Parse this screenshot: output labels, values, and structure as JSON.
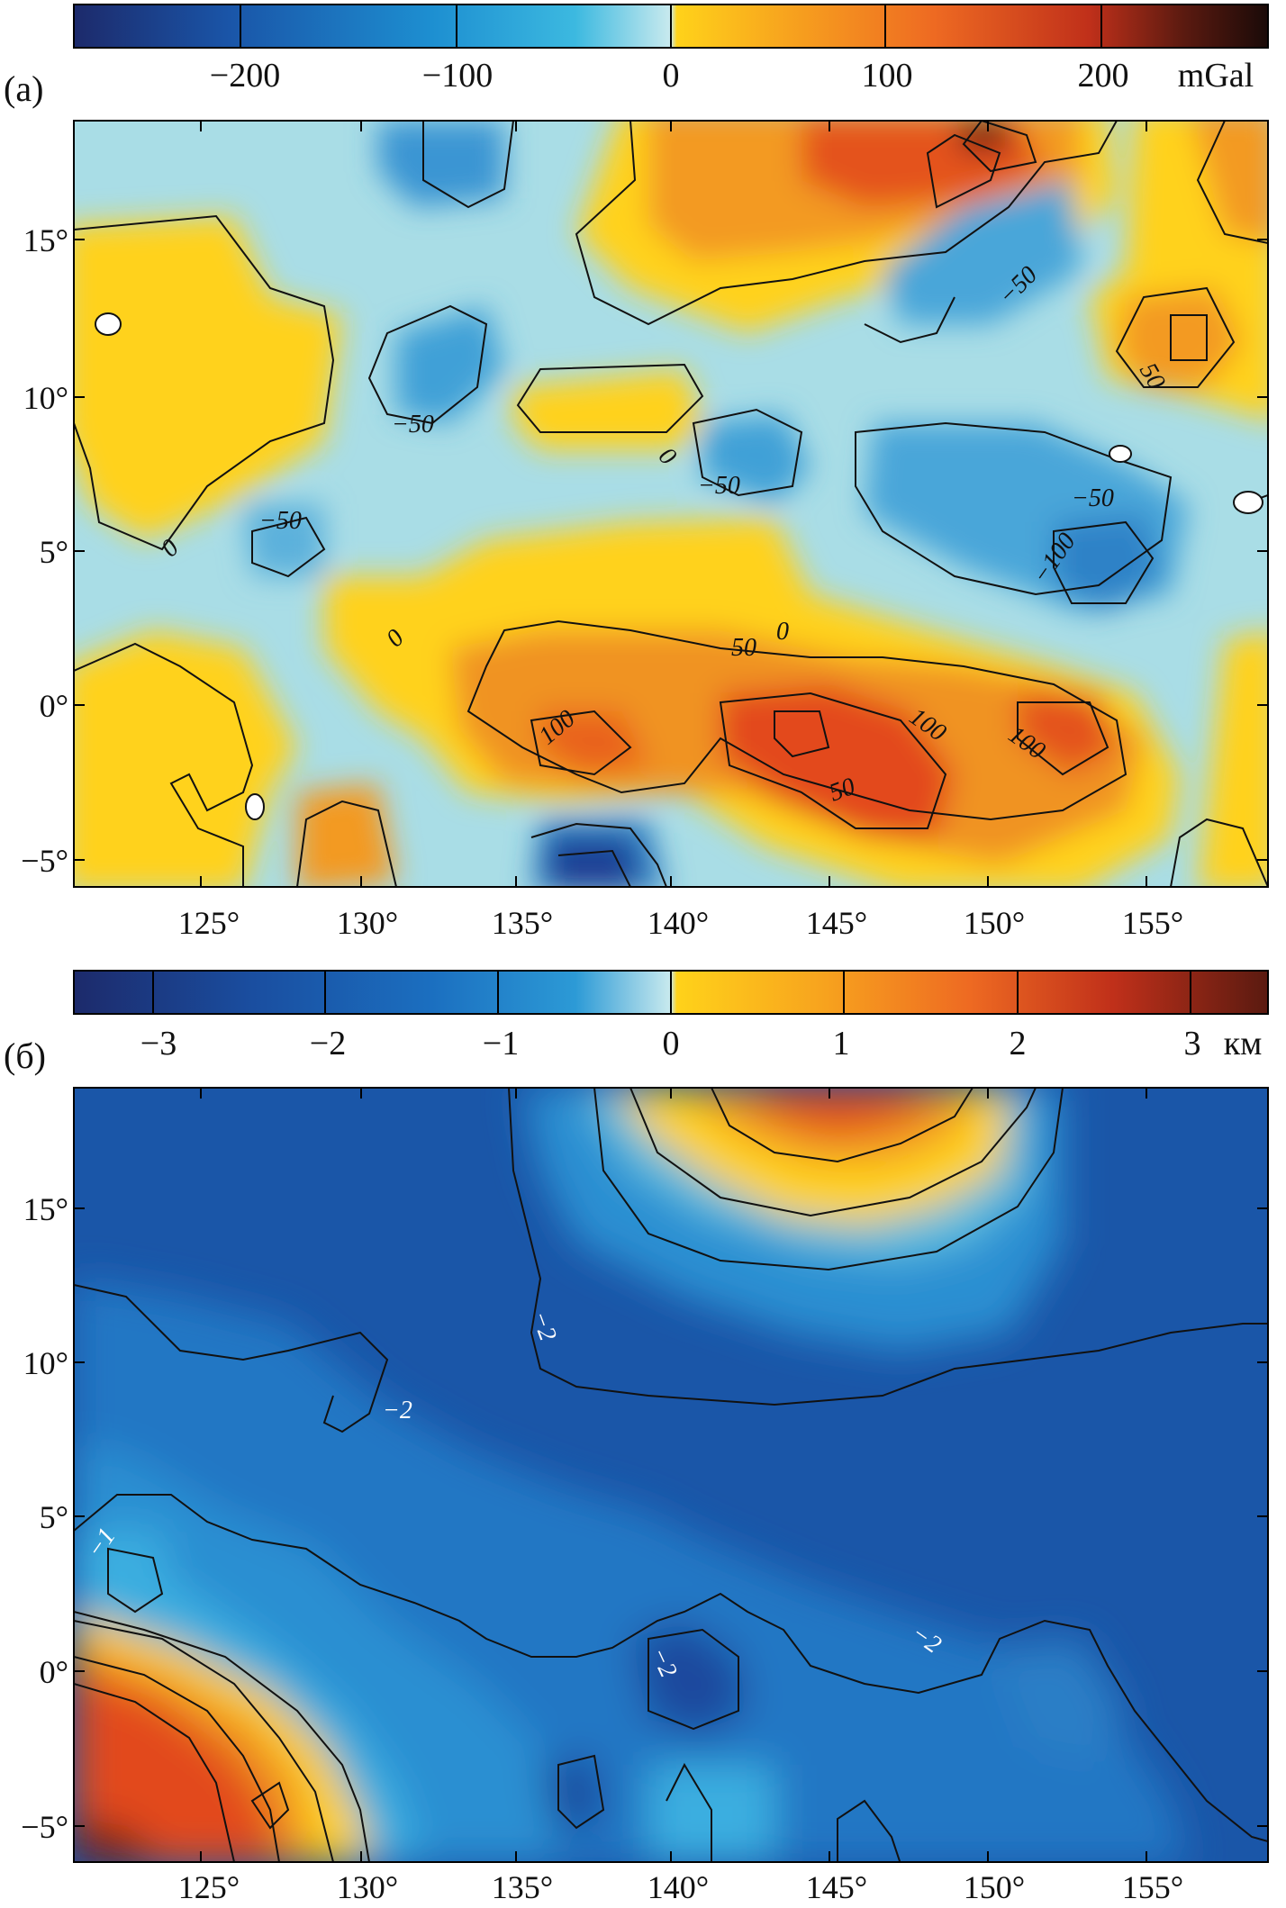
{
  "panels": [
    {
      "id": "a",
      "label": "(a)",
      "colorbar": {
        "ticks": [
          "−200",
          "−100",
          "0",
          "100",
          "200"
        ],
        "unit": "mGal",
        "stops": [
          "#1c2a6b",
          "#1a55a8",
          "#1d8fd1",
          "#3cb9e0",
          "#c9eaee",
          "#ffd21a",
          "#f7a21e",
          "#ee6a22",
          "#c0301a",
          "#5a1a10",
          "#1a0a08"
        ]
      },
      "xticks": [
        "125°",
        "130°",
        "135°",
        "140°",
        "145°",
        "150°",
        "155°"
      ],
      "yticks": [
        "15°",
        "10°",
        "5°",
        "0°",
        "−5°"
      ],
      "contour_labels": [
        "−50",
        "−50",
        "−50",
        "−50",
        "−50",
        "−100",
        "0",
        "0",
        "0",
        "0",
        "50",
        "50",
        "50",
        "100",
        "100",
        "100",
        "50"
      ]
    },
    {
      "id": "b",
      "label": "(б)",
      "colorbar": {
        "ticks": [
          "−3",
          "−2",
          "−1",
          "0",
          "1",
          "2",
          "3"
        ],
        "unit": "км",
        "stops": [
          "#1c2a6b",
          "#1a4ea0",
          "#1b6fc0",
          "#2c9ad6",
          "#c9eaee",
          "#ffd21a",
          "#f7a21e",
          "#ee6a22",
          "#c0301a",
          "#5a1a10"
        ]
      },
      "xticks": [
        "125°",
        "130°",
        "135°",
        "140°",
        "145°",
        "150°",
        "155°"
      ],
      "yticks": [
        "15°",
        "10°",
        "5°",
        "0°",
        "−5°"
      ],
      "contour_labels": [
        "−2",
        "−2",
        "−2",
        "−2",
        "−1"
      ]
    }
  ]
}
